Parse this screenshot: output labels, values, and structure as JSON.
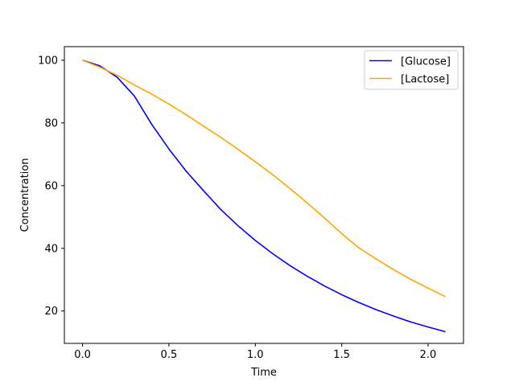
{
  "chart_data": {
    "type": "line",
    "title": "",
    "xlabel": "Time",
    "ylabel": "Concentration",
    "xlim": [
      -0.105,
      2.205
    ],
    "ylim": [
      9.67,
      104.33
    ],
    "x_ticks": [
      0.0,
      0.5,
      1.0,
      1.5,
      2.0
    ],
    "x_tick_labels": [
      "0.0",
      "0.5",
      "1.0",
      "1.5",
      "2.0"
    ],
    "y_ticks": [
      20,
      40,
      60,
      80,
      100
    ],
    "y_tick_labels": [
      "20",
      "40",
      "60",
      "80",
      "100"
    ],
    "grid": false,
    "legend_position": "top-right",
    "x": [
      0.0,
      0.1,
      0.2,
      0.3,
      0.4,
      0.5,
      0.6,
      0.7,
      0.8,
      0.9,
      1.0,
      1.1,
      1.2,
      1.3,
      1.4,
      1.5,
      1.6,
      1.7,
      1.8,
      1.9,
      2.0,
      2.1
    ],
    "series": [
      {
        "name": "[Glucose]",
        "color": "#0000ff",
        "values": [
          100.0,
          98.2,
          94.6,
          88.6,
          79.6,
          71.7,
          64.6,
          58.4,
          52.4,
          47.2,
          42.5,
          38.3,
          34.5,
          31.1,
          28.0,
          25.2,
          22.7,
          20.4,
          18.4,
          16.5,
          14.9,
          13.4
        ]
      },
      {
        "name": "[Lactose]",
        "color": "#ffa500",
        "values": [
          100.0,
          97.8,
          95.2,
          92.1,
          89.2,
          86.0,
          82.6,
          79.0,
          75.4,
          71.6,
          67.6,
          63.5,
          59.1,
          54.5,
          49.7,
          44.7,
          40.1,
          36.6,
          33.2,
          30.1,
          27.3,
          24.6
        ]
      }
    ]
  }
}
